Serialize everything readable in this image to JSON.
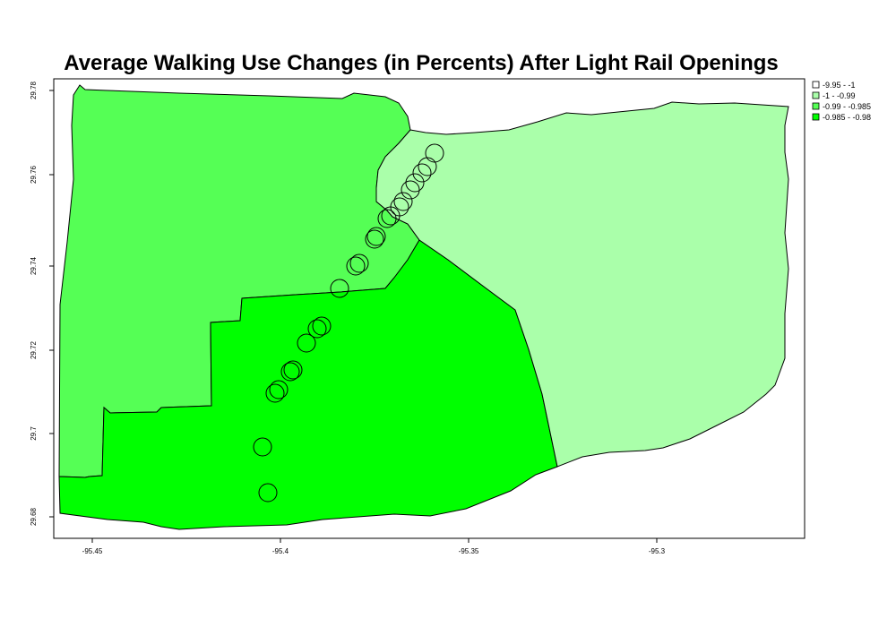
{
  "title": "Average Walking Use Changes (in Percents) After Light Rail Openings",
  "x_ticks": [
    "-95.45",
    "-95.4",
    "-95.35",
    "-95.3"
  ],
  "y_ticks": [
    "29.68",
    "29.7",
    "29.72",
    "29.74",
    "29.76",
    "29.78"
  ],
  "legend": [
    {
      "label": "-9.95 - -1",
      "color": "#ffffff"
    },
    {
      "label": "-1 - -0.99",
      "color": "#aaffaa"
    },
    {
      "label": "-0.99 - -0.985",
      "color": "#55ff55"
    },
    {
      "label": "-0.985 - -0.98",
      "color": "#00ff00"
    }
  ],
  "map": {
    "lon_range": [
      -95.46,
      -95.26
    ],
    "lat_range": [
      29.677,
      29.785
    ],
    "region_colors": {
      "west": "#55ff55",
      "south": "#00ff00",
      "east": "#aaffaa"
    }
  }
}
